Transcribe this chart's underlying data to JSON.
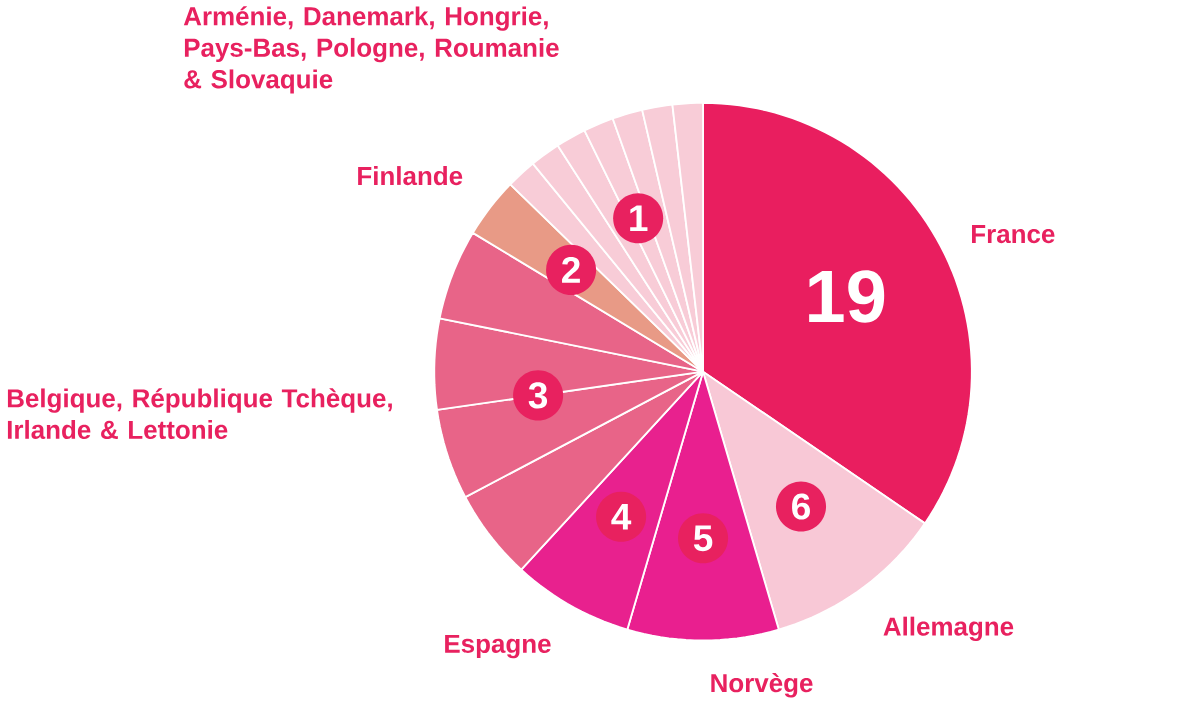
{
  "chart_data": {
    "type": "pie",
    "categories": [
      "France",
      "Allemagne",
      "Norvège",
      "Espagne",
      "Belgique, République Tchèque, Irlande & Lettonie",
      null,
      null,
      null,
      "Finlande",
      "Arménie, Danemark, Hongrie, Pays-Bas, Pologne, Roumanie & Slovaquie",
      null,
      null,
      null,
      null,
      null,
      null
    ],
    "values": [
      19,
      6,
      5,
      4,
      3,
      3,
      3,
      3,
      2,
      1,
      1,
      1,
      1,
      1,
      1,
      1
    ],
    "colors": [
      "#e91e5f",
      "#f8c8d6",
      "#e91f8f",
      "#e8218e",
      "#e86488",
      "#e86488",
      "#e86488",
      "#e86488",
      "#e89a86",
      "#f8ccd7",
      "#f8ccd7",
      "#f8ccd7",
      "#f8ccd7",
      "#f8ccd7",
      "#f8ccd7",
      "#f8ccd7"
    ],
    "value_labels": [
      "19",
      "6",
      "5",
      "4",
      "3",
      null,
      null,
      null,
      "2",
      "1",
      null,
      null,
      null,
      null,
      null,
      null
    ]
  }
}
